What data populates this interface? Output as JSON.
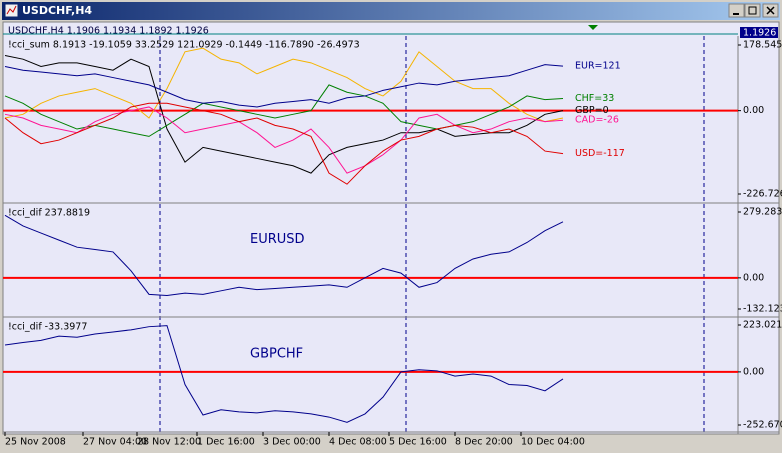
{
  "window": {
    "title": "USDCHF,H4"
  },
  "symbol_info": "USDCHF,H4  1.1906 1.1934 1.1892 1.1926",
  "price_label": "1.1926",
  "chart_data": [
    {
      "type": "line",
      "title": "!cci_sum 8.1913 -19.1059 33.2529 121.0929 -0.1449 -116.7890 -26.4973",
      "x": [
        0,
        3,
        6,
        9,
        12,
        15,
        18,
        21,
        24,
        27,
        30,
        33,
        36,
        39,
        42,
        45,
        48,
        51,
        54,
        57,
        60,
        63,
        66,
        69,
        72,
        75,
        78,
        81,
        84,
        87,
        90,
        93
      ],
      "xlim": [
        0,
        122.5
      ],
      "ylim": [
        -226.726,
        178.5452
      ],
      "yticks": [
        -226.726,
        {
          "value": 0,
          "label": "0.00"
        },
        178.5452
      ],
      "hline": 0,
      "hline_color": "#ff0000",
      "series": [
        {
          "name": null,
          "color": "#f5b400",
          "values": [
            -20,
            -10,
            20,
            40,
            50,
            60,
            40,
            20,
            -20,
            60,
            160,
            170,
            140,
            130,
            100,
            120,
            140,
            130,
            110,
            90,
            60,
            40,
            80,
            160,
            120,
            80,
            60,
            60,
            20,
            -10,
            -30,
            -20
          ]
        },
        {
          "name": "GBP=0",
          "color": "#000000",
          "values": [
            150,
            140,
            120,
            130,
            130,
            120,
            110,
            140,
            120,
            -50,
            -140,
            -100,
            -110,
            -120,
            -130,
            -140,
            -150,
            -170,
            -120,
            -100,
            -90,
            -80,
            -60,
            -60,
            -50,
            -70,
            -65,
            -60,
            -60,
            -40,
            -10,
            0
          ]
        },
        {
          "name": "CHF=33",
          "color": "#008000",
          "values": [
            40,
            20,
            -10,
            -30,
            -50,
            -40,
            -50,
            -60,
            -70,
            -40,
            -10,
            20,
            10,
            0,
            -10,
            -20,
            -10,
            0,
            70,
            50,
            40,
            20,
            -30,
            -40,
            -50,
            -40,
            -30,
            -10,
            10,
            40,
            30,
            33
          ]
        },
        {
          "name": "CAD=-26",
          "color": "#ff1493",
          "values": [
            -10,
            -20,
            -40,
            -50,
            -60,
            -30,
            -10,
            0,
            10,
            -20,
            -60,
            -50,
            -40,
            -30,
            -60,
            -100,
            -80,
            -50,
            -100,
            -170,
            -150,
            -120,
            -80,
            -20,
            -10,
            -40,
            -60,
            -50,
            -30,
            -20,
            -30,
            -26
          ]
        },
        {
          "name": "USD=-117",
          "color": "#e00000",
          "values": [
            -20,
            -60,
            -90,
            -80,
            -60,
            -40,
            -20,
            10,
            20,
            20,
            10,
            0,
            -10,
            -30,
            -20,
            -40,
            -50,
            -70,
            -170,
            -200,
            -150,
            -110,
            -80,
            -70,
            -50,
            -40,
            -45,
            -60,
            -50,
            -70,
            -110,
            -117
          ]
        },
        {
          "name": "EUR=121",
          "color": "#00008b",
          "values": [
            120,
            110,
            105,
            100,
            95,
            100,
            90,
            80,
            70,
            50,
            30,
            20,
            25,
            15,
            10,
            20,
            25,
            30,
            20,
            35,
            40,
            55,
            65,
            75,
            70,
            80,
            85,
            90,
            95,
            110,
            125,
            121
          ]
        }
      ]
    },
    {
      "type": "line",
      "title": "!cci_dif 237.8819",
      "annotation": "EURUSD",
      "x": [
        0,
        3,
        6,
        9,
        12,
        15,
        18,
        21,
        24,
        27,
        30,
        33,
        36,
        39,
        42,
        45,
        48,
        51,
        54,
        57,
        60,
        63,
        66,
        69,
        72,
        75,
        78,
        81,
        84,
        87,
        90,
        93
      ],
      "xlim": [
        0,
        122.5
      ],
      "ylim": [
        -132.123,
        279.2833
      ],
      "yticks": [
        -132.123,
        {
          "value": 0,
          "label": "0.00"
        },
        279.2833
      ],
      "hline": 0,
      "hline_color": "#ff0000",
      "color": "#00008b",
      "values": [
        265,
        220,
        190,
        160,
        130,
        120,
        110,
        30,
        -70,
        -75,
        -65,
        -70,
        -55,
        -40,
        -50,
        -45,
        -40,
        -35,
        -30,
        -40,
        0,
        40,
        20,
        -40,
        -20,
        40,
        80,
        100,
        110,
        150,
        200,
        237.8819
      ]
    },
    {
      "type": "line",
      "title": "!cci_dif -33.3977",
      "annotation": "GBPCHF",
      "x": [
        0,
        3,
        6,
        9,
        12,
        15,
        18,
        21,
        24,
        27,
        30,
        33,
        36,
        39,
        42,
        45,
        48,
        51,
        54,
        57,
        60,
        63,
        66,
        69,
        72,
        75,
        78,
        81,
        84,
        87,
        90,
        93
      ],
      "xlim": [
        0,
        122.5
      ],
      "ylim": [
        -252.67,
        223.0211
      ],
      "yticks": [
        {
          "value": -252.67,
          "label": "-252.670"
        },
        {
          "value": 0,
          "label": "0.00"
        },
        223.0211
      ],
      "xticks": [
        {
          "value": 0,
          "label": "25 Nov 2008"
        },
        {
          "value": 13,
          "label": "27 Nov 04:00"
        },
        {
          "value": 22,
          "label": "28 Nov 12:00"
        },
        {
          "value": 32,
          "label": "1 Dec 16:00"
        },
        {
          "value": 43,
          "label": "3 Dec 00:00"
        },
        {
          "value": 54,
          "label": "4 Dec 08:00"
        },
        {
          "value": 64,
          "label": "5 Dec 16:00"
        },
        {
          "value": 75,
          "label": "8 Dec 20:00"
        },
        {
          "value": 86,
          "label": "10 Dec 04:00"
        }
      ],
      "hline": 0,
      "hline_color": "#ff0000",
      "color": "#00008b",
      "values": [
        128,
        140,
        150,
        170,
        165,
        180,
        190,
        200,
        215,
        220,
        -60,
        -205,
        -180,
        -190,
        -195,
        -185,
        -190,
        -200,
        -215,
        -240,
        -200,
        -120,
        0,
        10,
        5,
        -20,
        -10,
        -20,
        -60,
        -65,
        -90,
        -33.3977
      ]
    }
  ]
}
